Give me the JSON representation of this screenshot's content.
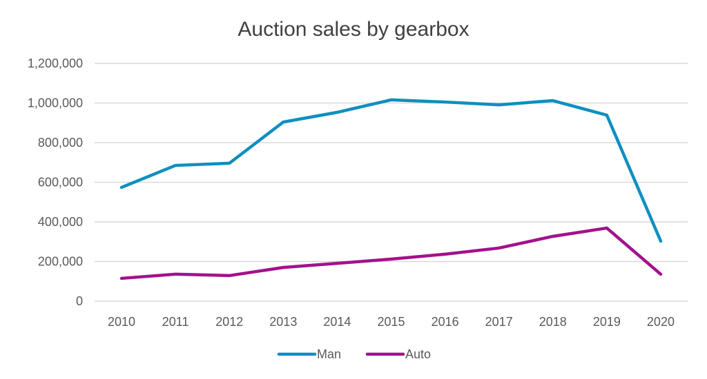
{
  "chart_data": {
    "type": "line",
    "title": "Auction sales by gearbox",
    "xlabel": "",
    "ylabel": "",
    "categories": [
      "2010",
      "2011",
      "2012",
      "2013",
      "2014",
      "2015",
      "2016",
      "2017",
      "2018",
      "2019",
      "2020"
    ],
    "series": [
      {
        "name": "Man",
        "color": "#0e8fc0",
        "values": [
          574000,
          685000,
          696000,
          904000,
          953000,
          1016000,
          1005000,
          991000,
          1012000,
          939000,
          303000
        ]
      },
      {
        "name": "Auto",
        "color": "#a3118d",
        "values": [
          115000,
          136000,
          129000,
          170000,
          191000,
          212000,
          237000,
          268000,
          327000,
          369000,
          136000
        ]
      }
    ],
    "ylim": [
      0,
      1200000
    ],
    "yticks": [
      0,
      200000,
      400000,
      600000,
      800000,
      1000000,
      1200000
    ],
    "ytick_labels": [
      "0",
      "200,000",
      "400,000",
      "600,000",
      "800,000",
      "1,000,000",
      "1,200,000"
    ],
    "grid": true,
    "legend_position": "bottom"
  }
}
